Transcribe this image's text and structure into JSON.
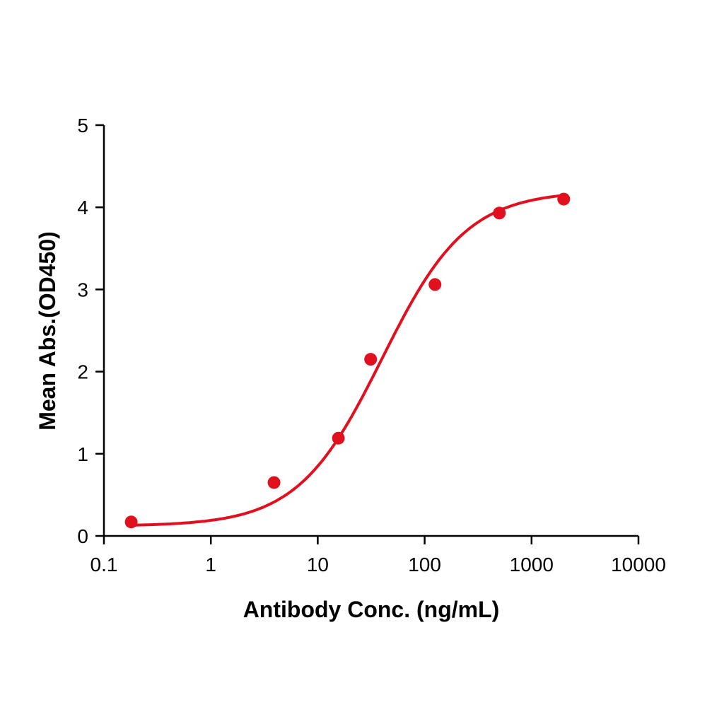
{
  "chart_data": {
    "type": "scatter",
    "title": "",
    "xlabel": "Antibody Conc. (ng/mL)",
    "ylabel": "Mean Abs.(OD450)",
    "xscale": "log",
    "xlim": [
      0.1,
      10000
    ],
    "ylim": [
      0,
      5
    ],
    "xticks": [
      "0.1",
      "1",
      "10",
      "100",
      "1000",
      "10000"
    ],
    "yticks": [
      "0",
      "1",
      "2",
      "3",
      "4",
      "5"
    ],
    "grid": false,
    "legend": "none",
    "color": "#e0101f",
    "series": [
      {
        "x": [
          0.18,
          3.9,
          15.6,
          31.25,
          125,
          500,
          2000
        ],
        "y": [
          0.17,
          0.65,
          1.19,
          2.15,
          3.06,
          3.93,
          4.1
        ],
        "fit": "four-parameter logistic curve"
      }
    ]
  }
}
